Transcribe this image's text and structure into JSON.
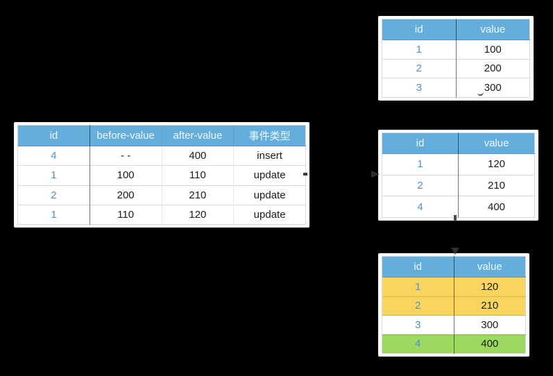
{
  "colors": {
    "background": "#000000",
    "card_bg": "#ffffff",
    "header_bg": "#63aedd",
    "header_text": "#f2f9fe",
    "id_text": "#4a92c6",
    "cell_text": "#1a1a1a",
    "row_yellow": "#fad55e",
    "row_green": "#9bda5f"
  },
  "tables": {
    "change_events": {
      "columns": [
        "id",
        "before-value",
        "after-value",
        "事件类型"
      ],
      "rows": [
        {
          "cells": [
            "4",
            "- -",
            "400",
            "insert"
          ]
        },
        {
          "cells": [
            "1",
            "100",
            "110",
            "update"
          ]
        },
        {
          "cells": [
            "2",
            "200",
            "210",
            "update"
          ]
        },
        {
          "cells": [
            "1",
            "110",
            "120",
            "update"
          ]
        }
      ]
    },
    "source_before": {
      "columns": [
        "id",
        "value"
      ],
      "rows": [
        {
          "cells": [
            "1",
            "100"
          ]
        },
        {
          "cells": [
            "2",
            "200"
          ]
        },
        {
          "cells": [
            "3",
            "300"
          ]
        }
      ]
    },
    "source_after": {
      "columns": [
        "id",
        "value"
      ],
      "rows": [
        {
          "cells": [
            "1",
            "120"
          ]
        },
        {
          "cells": [
            "2",
            "210"
          ]
        },
        {
          "cells": [
            "4",
            "400"
          ]
        }
      ]
    },
    "merged_result": {
      "columns": [
        "id",
        "value"
      ],
      "rows": [
        {
          "cells": [
            "1",
            "120"
          ],
          "bg": "row_yellow"
        },
        {
          "cells": [
            "2",
            "210"
          ],
          "bg": "row_yellow"
        },
        {
          "cells": [
            "3",
            "300"
          ]
        },
        {
          "cells": [
            "4",
            "400"
          ],
          "bg": "row_green"
        }
      ]
    }
  },
  "icons": {
    "arrow_right": "arrow-head-right-icon",
    "arrow_down": "arrow-head-down-icon"
  }
}
